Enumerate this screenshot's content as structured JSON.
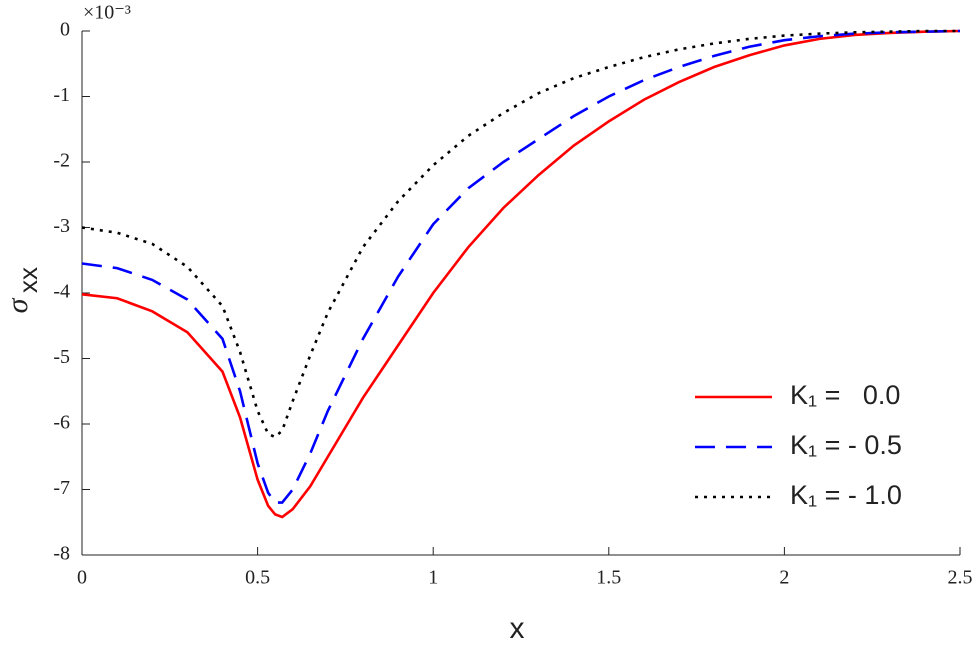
{
  "chart_data": {
    "type": "line",
    "xlabel": "x",
    "ylabel": "σ",
    "ylabel_subscript": "xx",
    "y_multiplier": "×10⁻³",
    "x": [
      0,
      0.1,
      0.2,
      0.3,
      0.4,
      0.45,
      0.5,
      0.53,
      0.55,
      0.57,
      0.6,
      0.65,
      0.7,
      0.8,
      0.9,
      1,
      1.1,
      1.2,
      1.3,
      1.4,
      1.5,
      1.6,
      1.7,
      1.8,
      1.9,
      2,
      2.1,
      2.2,
      2.3,
      2.4,
      2.5
    ],
    "series": [
      {
        "name": "K₁ =   0.0",
        "color": "#ff0000",
        "dash": "solid",
        "values": [
          -4.02,
          -4.08,
          -4.28,
          -4.6,
          -5.2,
          -5.9,
          -6.85,
          -7.25,
          -7.38,
          -7.42,
          -7.3,
          -6.95,
          -6.5,
          -5.6,
          -4.8,
          -4.0,
          -3.3,
          -2.7,
          -2.2,
          -1.75,
          -1.38,
          -1.05,
          -0.78,
          -0.55,
          -0.37,
          -0.22,
          -0.12,
          -0.06,
          -0.03,
          -0.01,
          0
        ]
      },
      {
        "name": "K₁ = - 0.5",
        "color": "#0000ff",
        "dash": "dashed",
        "values": [
          -3.55,
          -3.62,
          -3.8,
          -4.1,
          -4.7,
          -5.5,
          -6.6,
          -7.05,
          -7.2,
          -7.2,
          -7.0,
          -6.45,
          -5.8,
          -4.7,
          -3.75,
          -2.95,
          -2.4,
          -2.0,
          -1.65,
          -1.3,
          -1.0,
          -0.75,
          -0.55,
          -0.38,
          -0.24,
          -0.14,
          -0.08,
          -0.04,
          -0.02,
          -0.01,
          0
        ]
      },
      {
        "name": "K₁ = - 1.0",
        "color": "#000000",
        "dash": "dotted",
        "values": [
          -3.0,
          -3.08,
          -3.25,
          -3.6,
          -4.2,
          -4.9,
          -5.8,
          -6.15,
          -6.2,
          -6.1,
          -5.65,
          -4.95,
          -4.3,
          -3.3,
          -2.6,
          -2.05,
          -1.6,
          -1.25,
          -0.95,
          -0.72,
          -0.55,
          -0.4,
          -0.28,
          -0.19,
          -0.12,
          -0.07,
          -0.04,
          -0.02,
          -0.01,
          0,
          0
        ]
      }
    ],
    "xlim": [
      0,
      2.5
    ],
    "xticks": [
      0,
      0.5,
      1,
      1.5,
      2,
      2.5
    ],
    "ylim": [
      -8,
      0
    ],
    "yticks": [
      0,
      -1,
      -2,
      -3,
      -4,
      -5,
      -6,
      -7,
      -8
    ],
    "grid": false,
    "legend": "lower right"
  }
}
